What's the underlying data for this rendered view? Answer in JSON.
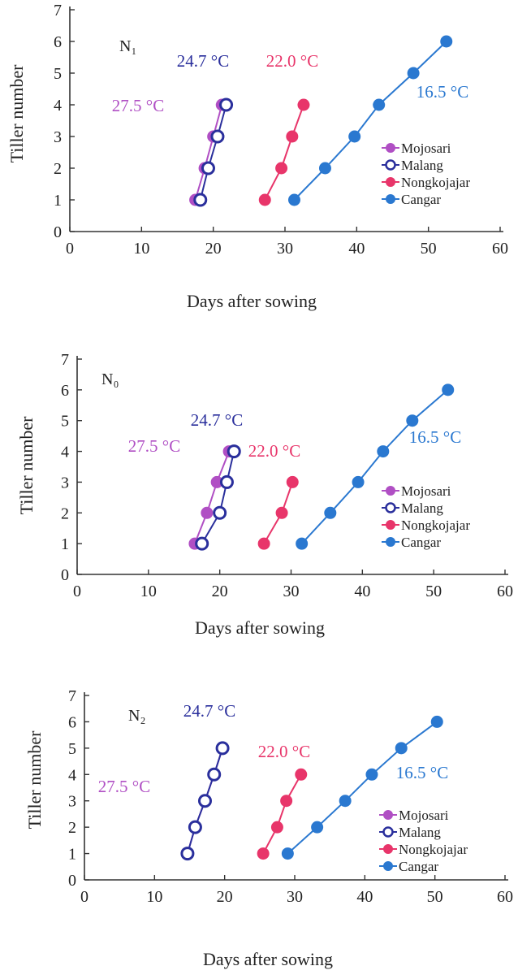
{
  "colors": {
    "axis": "#333333",
    "Mojosari": "#b04fc4",
    "Malang": "#2a2f9c",
    "Nongkojajar": "#e8356a",
    "Cangar": "#2a78d0"
  },
  "chart_data": [
    {
      "type": "line",
      "title": "N₁",
      "xlabel": "Days after sowing",
      "ylabel": "Tiller number",
      "xlim": [
        0,
        60
      ],
      "ylim": [
        0,
        7
      ],
      "xticks": [
        "0",
        "10",
        "20",
        "30",
        "40",
        "50",
        "60"
      ],
      "yticks": [
        "0",
        "1",
        "2",
        "3",
        "4",
        "5",
        "6",
        "7"
      ],
      "grid": false,
      "legend": "right",
      "series": [
        {
          "name": "Mojosari",
          "temp_label": "27.5 °C",
          "x": [
            17.5,
            18.8,
            20.0,
            21.2
          ],
          "y": [
            1,
            2,
            3,
            4
          ]
        },
        {
          "name": "Malang",
          "temp_label": "24.7 °C",
          "x": [
            18.2,
            19.3,
            20.6,
            21.8
          ],
          "y": [
            1,
            2,
            3,
            4
          ]
        },
        {
          "name": "Nongkojajar",
          "temp_label": "22.0 °C",
          "x": [
            27.2,
            29.5,
            31.0,
            32.6
          ],
          "y": [
            1,
            2,
            3,
            4
          ]
        },
        {
          "name": "Cangar",
          "temp_label": "16.5 °C",
          "x": [
            31.3,
            35.6,
            39.7,
            43.1,
            47.9,
            52.5
          ],
          "y": [
            1,
            2,
            3,
            4,
            5,
            6
          ]
        }
      ]
    },
    {
      "type": "line",
      "title": "N₀",
      "xlabel": "Days after sowing",
      "ylabel": "Tiller number",
      "xlim": [
        0,
        60
      ],
      "ylim": [
        0,
        7
      ],
      "xticks": [
        "0",
        "10",
        "20",
        "30",
        "40",
        "50",
        "60"
      ],
      "yticks": [
        "0",
        "1",
        "2",
        "3",
        "4",
        "5",
        "6",
        "7"
      ],
      "grid": false,
      "legend": "right",
      "series": [
        {
          "name": "Mojosari",
          "temp_label": "27.5 °C",
          "x": [
            16.5,
            18.2,
            19.6,
            21.3
          ],
          "y": [
            1,
            2,
            3,
            4
          ]
        },
        {
          "name": "Malang",
          "temp_label": "24.7 °C",
          "x": [
            17.5,
            20.0,
            21.0,
            22.0
          ],
          "y": [
            1,
            2,
            3,
            4
          ]
        },
        {
          "name": "Nongkojajar",
          "temp_label": "22.0 °C",
          "x": [
            26.2,
            28.7,
            30.2
          ],
          "y": [
            1,
            2,
            3
          ]
        },
        {
          "name": "Cangar",
          "temp_label": "16.5 °C",
          "x": [
            31.5,
            35.5,
            39.4,
            42.9,
            47.0,
            52.0
          ],
          "y": [
            1,
            2,
            3,
            4,
            5,
            6
          ]
        }
      ]
    },
    {
      "type": "line",
      "title": "N₂",
      "xlabel": "Days after sowing",
      "ylabel": "Tiller number",
      "xlim": [
        0,
        60
      ],
      "ylim": [
        0,
        7
      ],
      "xticks": [
        "0",
        "10",
        "20",
        "30",
        "40",
        "50",
        "60"
      ],
      "yticks": [
        "0",
        "1",
        "2",
        "3",
        "4",
        "5",
        "6",
        "7"
      ],
      "grid": false,
      "legend": "right",
      "series": [
        {
          "name": "Mojosari",
          "temp_label": "27.5 °C",
          "x": [
            14.7,
            15.8,
            17.2,
            18.5,
            19.7
          ],
          "y": [
            1,
            2,
            3,
            4,
            5
          ]
        },
        {
          "name": "Malang",
          "temp_label": "24.7 °C",
          "x": [
            14.7,
            15.8,
            17.2,
            18.5,
            19.7
          ],
          "y": [
            1,
            2,
            3,
            4,
            5
          ]
        },
        {
          "name": "Nongkojajar",
          "temp_label": "22.0 °C",
          "x": [
            25.5,
            27.5,
            28.8,
            30.9
          ],
          "y": [
            1,
            2,
            3,
            4
          ]
        },
        {
          "name": "Cangar",
          "temp_label": "16.5 °C",
          "x": [
            29.0,
            33.2,
            37.2,
            41.0,
            45.2,
            50.3
          ],
          "y": [
            1,
            2,
            3,
            4,
            5,
            6
          ]
        }
      ]
    }
  ]
}
